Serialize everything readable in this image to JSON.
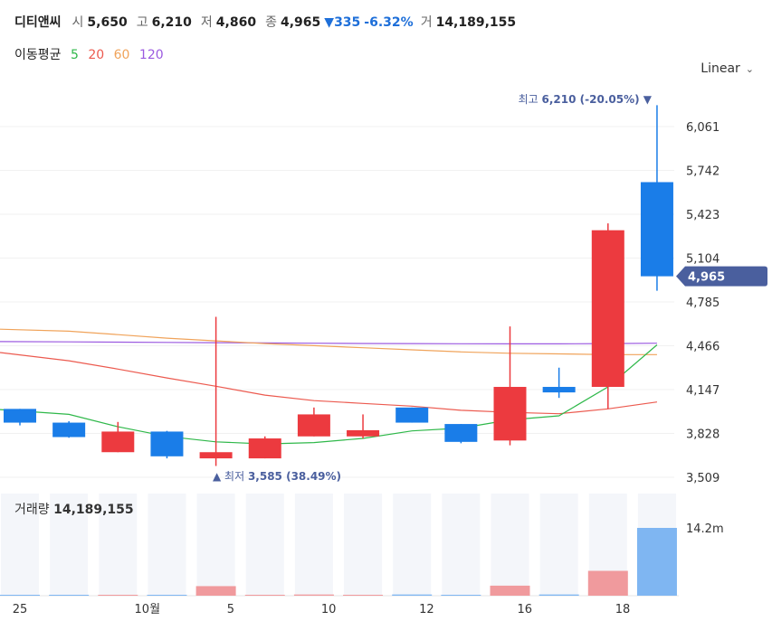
{
  "header": {
    "name": "디티앤씨",
    "open_label": "시",
    "open": "5,650",
    "high_label": "고",
    "high": "6,210",
    "low_label": "저",
    "low": "4,860",
    "close_label": "종",
    "close": "4,965",
    "change_arrow": "▼",
    "change": "335",
    "change_pct": "-6.32%",
    "volume_label": "거",
    "volume": "14,189,155"
  },
  "ma_legend": {
    "label": "이동평균",
    "items": [
      {
        "name": "5",
        "color": "#2fb84a"
      },
      {
        "name": "20",
        "color": "#ec5a4f"
      },
      {
        "name": "60",
        "color": "#f0a35a"
      },
      {
        "name": "120",
        "color": "#9b5ae0"
      }
    ]
  },
  "scale_selector": "Linear",
  "colors": {
    "up": "#ec3a3f",
    "down": "#1a7de8",
    "up_light": "#f09a9d",
    "down_light": "#7fb6f2",
    "price_tag": "#4a5f9e"
  },
  "chart_data": {
    "type": "candlestick",
    "ylim": [
      3509,
      6210
    ],
    "yticks": [
      "6,061",
      "5,742",
      "5,423",
      "5,104",
      "4,785",
      "4,466",
      "4,147",
      "3,828",
      "3,509"
    ],
    "xticks": [
      {
        "label": "25",
        "index": -1
      },
      {
        "label": "10월",
        "index": 1
      },
      {
        "label": "5",
        "index": 3
      },
      {
        "label": "10",
        "index": 5
      },
      {
        "label": "12",
        "index": 7
      },
      {
        "label": "16",
        "index": 9
      },
      {
        "label": "18",
        "index": 11
      }
    ],
    "candles": [
      {
        "open": 4000,
        "high": 4000,
        "low": 3880,
        "close": 3900
      },
      {
        "open": 3900,
        "high": 3910,
        "low": 3790,
        "close": 3795
      },
      {
        "open": 3685,
        "high": 3905,
        "low": 3685,
        "close": 3835
      },
      {
        "open": 3835,
        "high": 3840,
        "low": 3640,
        "close": 3655
      },
      {
        "open": 3640,
        "high": 4670,
        "low": 3585,
        "close": 3685
      },
      {
        "open": 3640,
        "high": 3800,
        "low": 3640,
        "close": 3785
      },
      {
        "open": 3800,
        "high": 4010,
        "low": 3800,
        "close": 3960
      },
      {
        "open": 3800,
        "high": 3960,
        "low": 3785,
        "close": 3845
      },
      {
        "open": 4010,
        "high": 4010,
        "low": 3900,
        "close": 3900
      },
      {
        "open": 3890,
        "high": 3890,
        "low": 3750,
        "close": 3760
      },
      {
        "open": 3770,
        "high": 4600,
        "low": 3735,
        "close": 4160
      },
      {
        "open": 4160,
        "high": 4300,
        "low": 4080,
        "close": 4120
      },
      {
        "open": 4160,
        "high": 5350,
        "low": 4000,
        "close": 5300
      },
      {
        "open": 5650,
        "high": 6210,
        "low": 4860,
        "close": 4965
      }
    ],
    "ma5": [
      3995,
      3960,
      3870,
      3800,
      3760,
      3745,
      3755,
      3785,
      3840,
      3860,
      3920,
      3950,
      4160,
      4466
    ],
    "ma20": [
      4410,
      4350,
      4290,
      4225,
      4165,
      4100,
      4060,
      4040,
      4020,
      3990,
      3975,
      3965,
      4000,
      4050
    ],
    "ma60": [
      4580,
      4565,
      4540,
      4515,
      4495,
      4475,
      4460,
      4445,
      4430,
      4415,
      4405,
      4400,
      4395,
      4395
    ],
    "ma120": [
      4490,
      4488,
      4486,
      4484,
      4482,
      4480,
      4478,
      4476,
      4475,
      4474,
      4473,
      4473,
      4475,
      4478
    ],
    "volume_label": "거래량",
    "volume_value": "14,189,155",
    "volume_axis_label": "14.2m",
    "volumes_m": [
      0.05,
      0.05,
      0.05,
      0.05,
      2.0,
      0.05,
      0.25,
      0.05,
      0.25,
      0.05,
      2.1,
      0.25,
      5.2,
      14.19
    ],
    "volume_max_m": 14.19,
    "last_price_tag": "4,965",
    "high_annotation": {
      "label": "최고",
      "value": "6,210 (-20.05%)",
      "arrow": "▼"
    },
    "low_annotation": {
      "label": "최저",
      "value": "3,585 (38.49%)",
      "arrow": "▲"
    }
  }
}
